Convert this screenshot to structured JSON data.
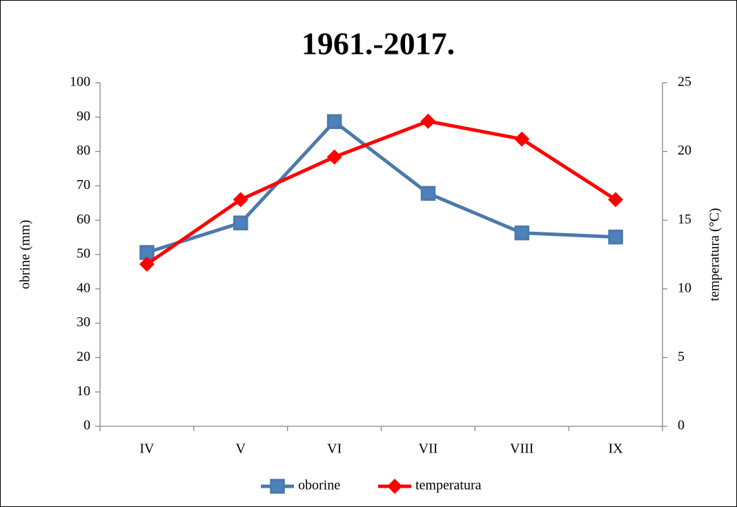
{
  "chart_data": {
    "type": "line",
    "title": "1961.-2017.",
    "categories": [
      "IV",
      "V",
      "VI",
      "VII",
      "VIII",
      "IX"
    ],
    "y_label": "obrine (mm)",
    "y2_label": "temperatura (°C)",
    "ylim": [
      0,
      100
    ],
    "yticks": [
      0,
      10,
      20,
      30,
      40,
      50,
      60,
      70,
      80,
      90,
      100
    ],
    "y2lim": [
      0,
      25
    ],
    "y2ticks": [
      0,
      5,
      10,
      15,
      20,
      25
    ],
    "legend": "bottom",
    "series": [
      {
        "name": "oborine",
        "color": "#4a7aad",
        "marker": "square",
        "values": [
          50.6,
          59.2,
          88.7,
          67.8,
          56.3,
          55.1
        ]
      },
      {
        "name": "temperatura",
        "color": "#ff0000",
        "marker": "diamond",
        "axis": "y2",
        "values": [
          11.8,
          16.5,
          19.6,
          22.2,
          20.9,
          16.5
        ]
      }
    ]
  }
}
